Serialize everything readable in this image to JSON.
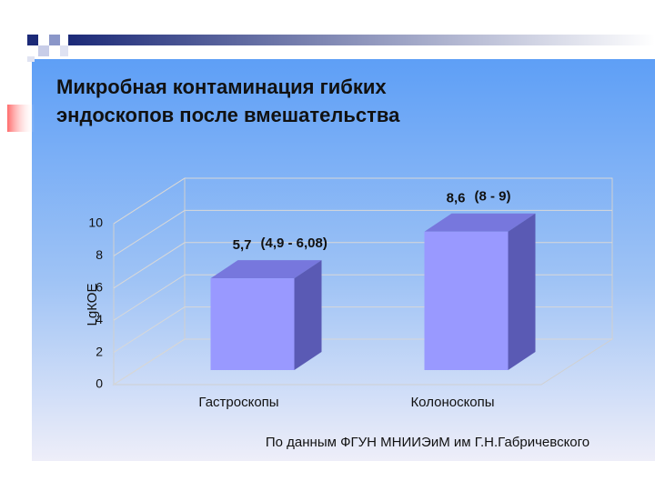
{
  "chart_data": {
    "type": "bar3d",
    "title_lines": [
      "Микробная контаминация гибких",
      "эндоскопов после вмешательства"
    ],
    "y_label": "LgКОЕ",
    "categories": [
      "Гастроскопы",
      "Колоноскопы"
    ],
    "values": [
      5.7,
      8.6
    ],
    "value_labels": [
      "5,7",
      "8,6"
    ],
    "interval_labels": [
      "(4,9 - 6,08)",
      "(8 - 9)"
    ],
    "color": "#9999ff",
    "ylim": [
      0,
      10
    ],
    "yticks": [
      0,
      2,
      4,
      6,
      8,
      10
    ],
    "grid": true,
    "source": "По данным ФГУН МНИИЭиМ им Г.Н.Габричевского"
  }
}
